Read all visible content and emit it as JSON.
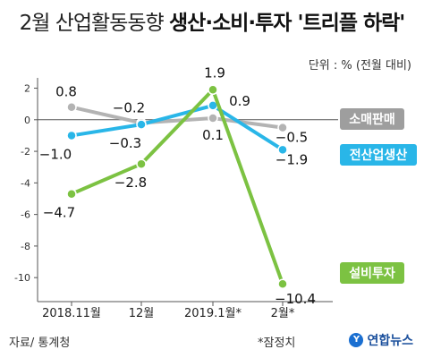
{
  "header": {
    "title_plain": "2월 산업활동동향",
    "title_bold": "생산·소비·투자 '트리플 하락'"
  },
  "unit": "단위 : % (전월 대비)",
  "source": "자료/ 통계청",
  "footnote": "*잠정치",
  "brand": "연합뉴스",
  "colors": {
    "소매판매": "#b3b3b3",
    "전산업생산": "#29b6e8",
    "설비투자": "#7cc242",
    "baseline": "#555555"
  },
  "chart_data": {
    "type": "line",
    "categories": [
      "2018.11월",
      "12월",
      "2019.1월*",
      "2월*"
    ],
    "ylim": [
      -10.5,
      2.2
    ],
    "yticks": [
      2,
      0,
      -2,
      -4,
      -6,
      -8,
      -10
    ],
    "grid": false,
    "series": [
      {
        "name": "소매판매",
        "values": [
          0.8,
          -0.2,
          0.1,
          -0.5
        ],
        "labels": [
          "0.8",
          "−0.2",
          "0.1",
          "−0.5"
        ]
      },
      {
        "name": "전산업생산",
        "values": [
          -1.0,
          -0.3,
          0.9,
          -1.9
        ],
        "labels": [
          "−1.0",
          "−0.3",
          "0.9",
          "−1.9"
        ]
      },
      {
        "name": "설비투자",
        "values": [
          -4.7,
          -2.8,
          1.9,
          -10.4
        ],
        "labels": [
          "−4.7",
          "−2.8",
          "1.9",
          "−10.4"
        ]
      }
    ]
  }
}
